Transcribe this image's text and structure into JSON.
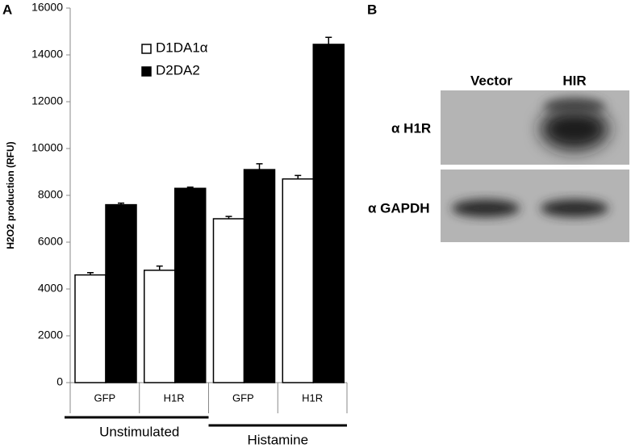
{
  "chart_data": {
    "type": "bar",
    "panel_label": "A",
    "y_label": "H2O2 production (RFU)",
    "categories": [
      "GFP",
      "H1R",
      "GFP",
      "H1R"
    ],
    "groups": [
      "Unstimulated",
      "Histamine"
    ],
    "series": [
      {
        "name": "D1DA1α",
        "color": "#ffffff",
        "values": [
          4600,
          4800,
          7000,
          8700
        ],
        "errors": [
          100,
          180,
          100,
          150
        ]
      },
      {
        "name": "D2DA2",
        "color": "#000000",
        "values": [
          7600,
          8300,
          9100,
          14450
        ],
        "errors": [
          70,
          50,
          250,
          300
        ]
      }
    ],
    "ylim": [
      0,
      16000
    ],
    "yticks": [
      0,
      2000,
      4000,
      6000,
      8000,
      10000,
      12000,
      14000,
      16000
    ],
    "grid": false
  },
  "blot": {
    "panel_label": "B",
    "lanes": [
      "Vector",
      "HIR"
    ],
    "rows": [
      "α H1R",
      "α GAPDH"
    ]
  }
}
